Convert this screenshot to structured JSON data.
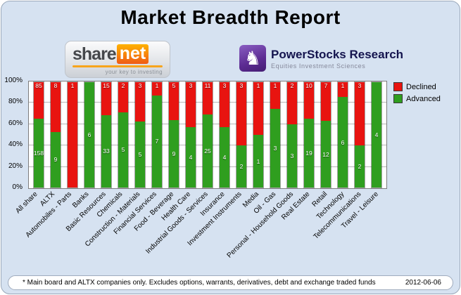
{
  "title": "Market Breadth Report",
  "logos": {
    "sharenet": {
      "text_main": "share",
      "text_accent": "net",
      "tagline": "your key to investing"
    },
    "powerstocks": {
      "name": "PowerStocks Research",
      "subtitle": "Equities Investment Sciences"
    }
  },
  "legend": {
    "items": [
      {
        "label": "Declined",
        "color": "#e81410"
      },
      {
        "label": "Advanced",
        "color": "#2f9e1f"
      }
    ]
  },
  "footer": {
    "note": "* Main board and ALTX companies only. Excludes options, warrants, derivatives, debt and exchange traded funds",
    "date": "2012-06-06"
  },
  "chart_data": {
    "type": "bar",
    "variant": "stacked-100-percent-column",
    "title": "Market Breadth Report",
    "xlabel": "",
    "ylabel": "",
    "ylim": [
      0,
      100
    ],
    "y_ticks": [
      "0%",
      "20%",
      "40%",
      "60%",
      "80%",
      "100%"
    ],
    "grid": true,
    "legend_position": "right-top",
    "tick_label_rotation_deg": 45,
    "categories": [
      "All share",
      "ALTX",
      "Automobiles - Parts",
      "Banks",
      "Basic Resources",
      "Chemicals",
      "Construction - Materials",
      "Financial Services",
      "Food - Beverage",
      "Health Care",
      "Industrial Goods - Services",
      "Insurance",
      "Investment Instruments",
      "Media",
      "Oil - Gas",
      "Personal - Household Goods",
      "Real Estate",
      "Retail",
      "Technology",
      "Telecommunications",
      "Travel - Leisure"
    ],
    "series": [
      {
        "name": "Declined",
        "color": "#e81410",
        "values": [
          85,
          8,
          1,
          0,
          15,
          2,
          3,
          1,
          5,
          3,
          11,
          3,
          3,
          1,
          1,
          2,
          10,
          7,
          1,
          3,
          0
        ]
      },
      {
        "name": "Advanced",
        "color": "#2f9e1f",
        "values": [
          158,
          9,
          0,
          6,
          33,
          5,
          5,
          7,
          9,
          4,
          25,
          4,
          2,
          1,
          3,
          3,
          19,
          12,
          6,
          2,
          4
        ]
      }
    ]
  }
}
